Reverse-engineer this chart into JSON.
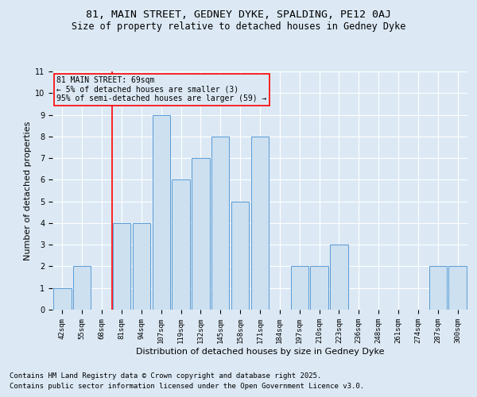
{
  "title1": "81, MAIN STREET, GEDNEY DYKE, SPALDING, PE12 0AJ",
  "title2": "Size of property relative to detached houses in Gedney Dyke",
  "xlabel": "Distribution of detached houses by size in Gedney Dyke",
  "ylabel": "Number of detached properties",
  "categories": [
    "42sqm",
    "55sqm",
    "68sqm",
    "81sqm",
    "94sqm",
    "107sqm",
    "119sqm",
    "132sqm",
    "145sqm",
    "158sqm",
    "171sqm",
    "184sqm",
    "197sqm",
    "210sqm",
    "223sqm",
    "236sqm",
    "248sqm",
    "261sqm",
    "274sqm",
    "287sqm",
    "300sqm"
  ],
  "values": [
    1,
    2,
    0,
    4,
    4,
    9,
    6,
    7,
    8,
    5,
    8,
    0,
    2,
    2,
    3,
    0,
    0,
    0,
    0,
    2,
    2
  ],
  "bar_color_fill": "#cce0f0",
  "bar_color_edge": "#5b9bd5",
  "redline_index": 2.5,
  "annotation_title": "81 MAIN STREET: 69sqm",
  "annotation_line1": "← 5% of detached houses are smaller (3)",
  "annotation_line2": "95% of semi-detached houses are larger (59) →",
  "ylim": [
    0,
    11
  ],
  "yticks": [
    0,
    1,
    2,
    3,
    4,
    5,
    6,
    7,
    8,
    9,
    10,
    11
  ],
  "footer1": "Contains HM Land Registry data © Crown copyright and database right 2025.",
  "footer2": "Contains public sector information licensed under the Open Government Licence v3.0.",
  "background_color": "#dce9f5",
  "grid_color": "#ffffff",
  "title_fontsize": 9.5,
  "subtitle_fontsize": 8.5,
  "tick_fontsize": 6.5,
  "axis_label_fontsize": 8,
  "footer_fontsize": 6.5,
  "annotation_fontsize": 7
}
